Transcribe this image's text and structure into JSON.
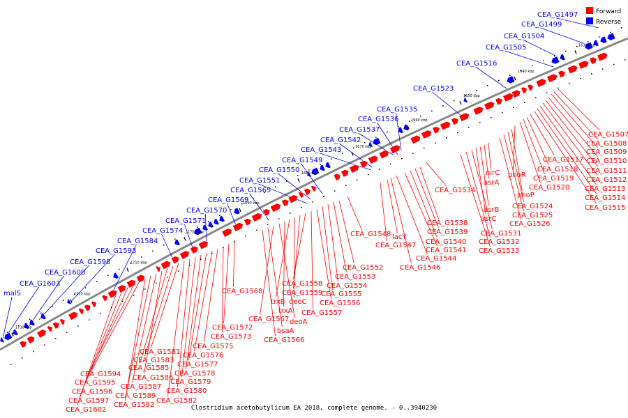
{
  "caption": "Clostridium acetobutylicum EA 2018, complete genome. - 0..3940230",
  "legend": {
    "forward_label": "Forward",
    "reverse_label": "Reverse",
    "forward_color": "#ff0000",
    "reverse_color": "#0000ff"
  },
  "colors": {
    "backbone": "#888888",
    "tick": "#000000"
  },
  "kbp_ticks": [
    "1630 kbp",
    "1640 kbp",
    "1650 kbp",
    "1660 kbp",
    "1670 kbp",
    "1680 kbp",
    "1690 kbp",
    "1700 kbp",
    "1710 kbp",
    "1720 kbp",
    "1730 kbp"
  ],
  "reverse_genes": [
    "CEA_G1497",
    "CEA_G1499",
    "CEA_G1504",
    "CEA_G1505",
    "CEA_G1516",
    "CEA_G1523",
    "CEA_G1535",
    "CEA_G1536",
    "CEA_G1537",
    "CEA_G1542",
    "CEA_G1543",
    "CEA_G1549",
    "CEA_G1550",
    "CEA_G1551",
    "CEA_G1565",
    "CEA_G1569",
    "CEA_G1570",
    "CEA_G1571",
    "CEA_G1574",
    "CEA_G1584",
    "CEA_G1593",
    "CEA_G1598",
    "CEA_G1600",
    "CEA_G1603",
    "malS"
  ],
  "forward_genes": [
    "CEA_G1507",
    "CEA_G1508",
    "CEA_G1509",
    "CEA_G1510",
    "CEA_G1511",
    "CEA_G1512",
    "CEA_G1513",
    "CEA_G1514",
    "CEA_G1515",
    "CEA_G1517",
    "CEA_G1518",
    "CEA_G1519",
    "CEA_G1520",
    "phoR",
    "phoP",
    "CEA_G1524",
    "CEA_G1525",
    "CEA_G1526",
    "nirC",
    "asrA",
    "asrB",
    "asrC",
    "CEA_G1531",
    "CEA_G1532",
    "CEA_G1533",
    "CEA_G1534",
    "CEA_G1538",
    "CEA_G1539",
    "CEA_G1540",
    "CEA_G1541",
    "CEA_G1544",
    "CEA_G1546",
    "lacY",
    "CEA_G1547",
    "CEA_G1548",
    "CEA_G1552",
    "CEA_G1553",
    "CEA_G1554",
    "CEA_G1555",
    "CEA_G1556",
    "CEA_G1557",
    "CEA_G1558",
    "CEA_G1559",
    "deoC",
    "trxB",
    "trxA",
    "deoA",
    "CEA_G1567",
    "bsaA",
    "CEA_G1566",
    "CEA_G1568",
    "CEA_G1572",
    "CEA_G1573",
    "CEA_G1575",
    "CEA_G1576",
    "CEA_G1577",
    "CEA_G1578",
    "CEA_G1579",
    "CEA_G1580",
    "CEA_G1582",
    "CEA_G1581",
    "CEA_G1583",
    "CEA_G1585",
    "CEA_G1586",
    "CEA_G1587",
    "CEA_G1589",
    "CEA_G1592",
    "CEA_G1594",
    "CEA_G1595",
    "CEA_G1596",
    "CEA_G1597",
    "CEA_G1602"
  ]
}
